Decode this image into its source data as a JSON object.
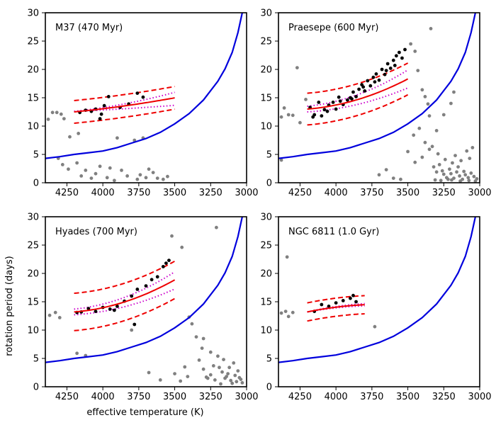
{
  "figure": {
    "xlabel": "effective temperature  (K)",
    "ylabel": "rotation period (days)"
  },
  "colors": {
    "field": "#808080",
    "member": "#000000",
    "fit": "#ee0000",
    "model": "#cc00cc",
    "slow_boundary": "#0000dd"
  },
  "chart_data": [
    {
      "type": "scatter",
      "title": "M37 (470 Myr)",
      "xlim": [
        4400,
        3000
      ],
      "ylim": [
        0,
        30
      ],
      "xticks": [
        4250,
        4000,
        3750,
        3500,
        3250,
        3000
      ],
      "yticks": [
        0,
        5,
        10,
        15,
        20,
        25,
        30
      ],
      "fit_range": [
        4200,
        3500
      ],
      "fit_coeffs": [
        12.5,
        2.5,
        1.5
      ],
      "fit_band": 2.0,
      "model_lower": [
        12.6,
        1.1,
        0.6
      ],
      "model_upper": [
        12.6,
        2.7,
        3.0
      ],
      "members": [
        [
          4160,
          12.4
        ],
        [
          4120,
          12.8
        ],
        [
          4080,
          12.6
        ],
        [
          4050,
          13.0
        ],
        [
          4020,
          11.3
        ],
        [
          3990,
          13.6
        ],
        [
          3960,
          15.2
        ],
        [
          3880,
          13.3
        ],
        [
          3820,
          13.9
        ],
        [
          3760,
          15.8
        ],
        [
          3720,
          15.1
        ],
        [
          4010,
          12.1
        ]
      ],
      "field": [
        [
          4380,
          11.2
        ],
        [
          4350,
          12.4
        ],
        [
          4320,
          12.4
        ],
        [
          4290,
          12.1
        ],
        [
          4270,
          11.3
        ],
        [
          4310,
          4.3
        ],
        [
          4280,
          3.2
        ],
        [
          4240,
          2.4
        ],
        [
          4180,
          3.5
        ],
        [
          4150,
          1.2
        ],
        [
          4120,
          2.2
        ],
        [
          4080,
          0.8
        ],
        [
          4050,
          1.6
        ],
        [
          4020,
          2.9
        ],
        [
          3970,
          0.9
        ],
        [
          3950,
          2.6
        ],
        [
          3920,
          0.4
        ],
        [
          3870,
          2.2
        ],
        [
          3830,
          1.2
        ],
        [
          3780,
          7.5
        ],
        [
          3760,
          0.6
        ],
        [
          3740,
          1.4
        ],
        [
          3720,
          7.9
        ],
        [
          3700,
          0.9
        ],
        [
          3680,
          2.4
        ],
        [
          3650,
          1.8
        ],
        [
          3620,
          0.8
        ],
        [
          3580,
          0.6
        ],
        [
          3550,
          1.1
        ],
        [
          4230,
          8.1
        ],
        [
          4170,
          8.7
        ],
        [
          3900,
          7.9
        ]
      ],
      "slow_boundary": [
        [
          4400,
          4.3
        ],
        [
          4300,
          4.6
        ],
        [
          4200,
          5.0
        ],
        [
          4100,
          5.3
        ],
        [
          4000,
          5.6
        ],
        [
          3900,
          6.2
        ],
        [
          3800,
          7.0
        ],
        [
          3700,
          7.8
        ],
        [
          3600,
          8.9
        ],
        [
          3500,
          10.4
        ],
        [
          3400,
          12.2
        ],
        [
          3300,
          14.6
        ],
        [
          3200,
          17.9
        ],
        [
          3150,
          20.1
        ],
        [
          3100,
          23.0
        ],
        [
          3060,
          26.5
        ],
        [
          3030,
          30.0
        ]
      ]
    },
    {
      "type": "scatter",
      "title": "Praesepe (600 Myr)",
      "xlim": [
        4400,
        3000
      ],
      "ylim": [
        0,
        30
      ],
      "xticks": [
        4250,
        4000,
        3750,
        3500,
        3250,
        3000
      ],
      "yticks": [
        0,
        5,
        10,
        15,
        20,
        25,
        30
      ],
      "fit_range": [
        4200,
        3500
      ],
      "fit_coeffs": [
        13.0,
        2.0,
        8.0
      ],
      "fit_band": 2.8,
      "model_lower": [
        12.5,
        1.5,
        6.5
      ],
      "model_upper": [
        13.5,
        2.5,
        9.5
      ],
      "members": [
        [
          4180,
          13.3
        ],
        [
          4150,
          12.0
        ],
        [
          4120,
          14.2
        ],
        [
          4100,
          11.8
        ],
        [
          4080,
          12.9
        ],
        [
          4050,
          13.7
        ],
        [
          4020,
          14.2
        ],
        [
          4000,
          13.0
        ],
        [
          3980,
          15.1
        ],
        [
          3950,
          13.8
        ],
        [
          3920,
          14.6
        ],
        [
          3900,
          15.0
        ],
        [
          3880,
          16.0
        ],
        [
          3860,
          15.2
        ],
        [
          3840,
          16.5
        ],
        [
          3820,
          17.3
        ],
        [
          3800,
          16.2
        ],
        [
          3780,
          18.0
        ],
        [
          3760,
          17.1
        ],
        [
          3740,
          18.6
        ],
        [
          3720,
          19.2
        ],
        [
          3700,
          18.1
        ],
        [
          3680,
          20.0
        ],
        [
          3660,
          19.1
        ],
        [
          3640,
          21.0
        ],
        [
          3620,
          20.2
        ],
        [
          3600,
          21.6
        ],
        [
          3580,
          22.4
        ],
        [
          3560,
          23.0
        ],
        [
          3540,
          22.0
        ],
        [
          3520,
          23.5
        ],
        [
          4160,
          11.6
        ],
        [
          4060,
          12.6
        ],
        [
          3970,
          14.4
        ],
        [
          3890,
          14.8
        ],
        [
          3810,
          16.9
        ],
        [
          3730,
          17.8
        ],
        [
          3650,
          19.8
        ],
        [
          3590,
          20.7
        ]
      ],
      "field": [
        [
          4380,
          11.6
        ],
        [
          4360,
          13.2
        ],
        [
          4330,
          12.0
        ],
        [
          4300,
          11.9
        ],
        [
          4270,
          20.3
        ],
        [
          4250,
          10.6
        ],
        [
          4210,
          14.7
        ],
        [
          4380,
          4.0
        ],
        [
          3480,
          24.5
        ],
        [
          3450,
          23.2
        ],
        [
          3430,
          19.8
        ],
        [
          3400,
          16.4
        ],
        [
          3380,
          15.2
        ],
        [
          3360,
          13.9
        ],
        [
          3350,
          11.8
        ],
        [
          3420,
          9.6
        ],
        [
          3460,
          8.4
        ],
        [
          3500,
          5.5
        ],
        [
          3450,
          3.6
        ],
        [
          3400,
          4.5
        ],
        [
          3380,
          7.1
        ],
        [
          3350,
          5.9
        ],
        [
          3320,
          2.8
        ],
        [
          3300,
          1.9
        ],
        [
          3280,
          3.2
        ],
        [
          3260,
          2.1
        ],
        [
          3250,
          1.5
        ],
        [
          3230,
          0.9
        ],
        [
          3210,
          2.4
        ],
        [
          3200,
          1.6
        ],
        [
          3180,
          0.8
        ],
        [
          3160,
          1.9
        ],
        [
          3150,
          2.8
        ],
        [
          3140,
          1.2
        ],
        [
          3120,
          0.6
        ],
        [
          3110,
          2.0
        ],
        [
          3100,
          1.4
        ],
        [
          3080,
          0.9
        ],
        [
          3060,
          1.7
        ],
        [
          3040,
          1.1
        ],
        [
          3020,
          0.7
        ],
        [
          3330,
          6.4
        ],
        [
          3290,
          5.1
        ],
        [
          3240,
          4.1
        ],
        [
          3190,
          3.5
        ],
        [
          3170,
          4.8
        ],
        [
          3130,
          3.9
        ],
        [
          3090,
          5.6
        ],
        [
          3070,
          4.3
        ],
        [
          3050,
          6.2
        ],
        [
          3310,
          0.5
        ],
        [
          3270,
          0.4
        ],
        [
          3220,
          0.6
        ],
        [
          3195,
          0.5
        ],
        [
          3135,
          0.3
        ],
        [
          3075,
          0.4
        ],
        [
          3030,
          0.3
        ],
        [
          3600,
          0.8
        ],
        [
          3650,
          2.3
        ],
        [
          3700,
          1.4
        ],
        [
          3550,
          0.6
        ],
        [
          3340,
          27.2
        ],
        [
          3200,
          14.0
        ],
        [
          3180,
          16.0
        ],
        [
          3250,
          12.0
        ],
        [
          3300,
          9.2
        ]
      ],
      "slow_boundary": [
        [
          4400,
          4.3
        ],
        [
          4300,
          4.6
        ],
        [
          4200,
          5.0
        ],
        [
          4100,
          5.3
        ],
        [
          4000,
          5.6
        ],
        [
          3900,
          6.2
        ],
        [
          3800,
          7.0
        ],
        [
          3700,
          7.8
        ],
        [
          3600,
          8.9
        ],
        [
          3500,
          10.4
        ],
        [
          3400,
          12.2
        ],
        [
          3300,
          14.6
        ],
        [
          3200,
          17.9
        ],
        [
          3150,
          20.1
        ],
        [
          3100,
          23.0
        ],
        [
          3060,
          26.5
        ],
        [
          3030,
          30.0
        ]
      ]
    },
    {
      "type": "scatter",
      "title": "Hyades (700 Myr)",
      "xlim": [
        4400,
        3000
      ],
      "ylim": [
        0,
        30
      ],
      "xticks": [
        4250,
        4000,
        3750,
        3500,
        3250,
        3000
      ],
      "yticks": [
        0,
        5,
        10,
        15,
        20,
        25,
        30
      ],
      "fit_range": [
        4200,
        3500
      ],
      "fit_coeffs": [
        13.2,
        2.0,
        8.7
      ],
      "fit_band": 3.3,
      "model_lower": [
        12.7,
        1.6,
        7.0
      ],
      "model_upper": [
        13.7,
        2.4,
        10.0
      ],
      "members": [
        [
          4180,
          13.1
        ],
        [
          4150,
          13.2
        ],
        [
          4100,
          13.8
        ],
        [
          4050,
          13.3
        ],
        [
          4000,
          14.0
        ],
        [
          3950,
          13.7
        ],
        [
          3900,
          14.2
        ],
        [
          3850,
          15.1
        ],
        [
          3800,
          16.0
        ],
        [
          3780,
          11.0
        ],
        [
          3760,
          17.2
        ],
        [
          3700,
          17.8
        ],
        [
          3660,
          18.9
        ],
        [
          3620,
          19.4
        ],
        [
          3580,
          21.2
        ],
        [
          3560,
          21.8
        ],
        [
          3540,
          22.3
        ],
        [
          3920,
          13.5
        ]
      ],
      "field": [
        [
          4370,
          12.6
        ],
        [
          4330,
          13.1
        ],
        [
          4300,
          12.2
        ],
        [
          4180,
          5.9
        ],
        [
          4120,
          5.5
        ],
        [
          3520,
          26.6
        ],
        [
          3450,
          24.6
        ],
        [
          3400,
          12.3
        ],
        [
          3380,
          11.1
        ],
        [
          3350,
          8.8
        ],
        [
          3330,
          4.7
        ],
        [
          3310,
          6.8
        ],
        [
          3300,
          3.1
        ],
        [
          3280,
          1.7
        ],
        [
          3250,
          2.1
        ],
        [
          3220,
          1.2
        ],
        [
          3210,
          28.1
        ],
        [
          3190,
          3.4
        ],
        [
          3170,
          2.6
        ],
        [
          3150,
          1.5
        ],
        [
          3130,
          2.3
        ],
        [
          3110,
          1.1
        ],
        [
          3090,
          4.2
        ],
        [
          3070,
          0.9
        ],
        [
          3050,
          1.6
        ],
        [
          3030,
          0.7
        ],
        [
          3410,
          1.8
        ],
        [
          3430,
          3.5
        ],
        [
          3460,
          1.0
        ],
        [
          3500,
          2.3
        ],
        [
          3600,
          1.2
        ],
        [
          3680,
          2.5
        ],
        [
          3300,
          8.5
        ],
        [
          3250,
          6.1
        ],
        [
          3200,
          5.4
        ],
        [
          3160,
          4.8
        ],
        [
          3120,
          3.4
        ],
        [
          3080,
          2.0
        ],
        [
          3270,
          1.5
        ],
        [
          3230,
          3.7
        ],
        [
          3180,
          0.5
        ],
        [
          3140,
          1.8
        ],
        [
          3100,
          0.6
        ],
        [
          3060,
          2.8
        ],
        [
          3040,
          1.3
        ],
        [
          3800,
          10.0
        ]
      ],
      "slow_boundary": [
        [
          4400,
          4.3
        ],
        [
          4300,
          4.6
        ],
        [
          4200,
          5.0
        ],
        [
          4100,
          5.3
        ],
        [
          4000,
          5.6
        ],
        [
          3900,
          6.2
        ],
        [
          3800,
          7.0
        ],
        [
          3700,
          7.8
        ],
        [
          3600,
          8.9
        ],
        [
          3500,
          10.4
        ],
        [
          3400,
          12.2
        ],
        [
          3300,
          14.6
        ],
        [
          3200,
          17.9
        ],
        [
          3150,
          20.1
        ],
        [
          3100,
          23.0
        ],
        [
          3060,
          26.5
        ],
        [
          3030,
          30.0
        ]
      ]
    },
    {
      "type": "scatter",
      "title": "NGC 6811 (1.0 Gyr)",
      "xlim": [
        4400,
        3000
      ],
      "ylim": [
        0,
        30
      ],
      "xticks": [
        4250,
        4000,
        3750,
        3500,
        3250,
        3000
      ],
      "yticks": [
        0,
        5,
        10,
        15,
        20,
        25,
        30
      ],
      "fit_range": [
        4200,
        3800
      ],
      "fit_coeffs": [
        13.2,
        5.2,
        -5.0
      ],
      "fit_band": 1.6,
      "model_lower": [
        13.2,
        4.4,
        -4.2
      ],
      "model_upper": [
        13.2,
        6.0,
        -5.8
      ],
      "members": [
        [
          4150,
          13.3
        ],
        [
          4100,
          14.5
        ],
        [
          4050,
          14.2
        ],
        [
          4000,
          14.8
        ],
        [
          3950,
          15.2
        ],
        [
          3900,
          15.6
        ],
        [
          3880,
          16.1
        ],
        [
          3860,
          15.0
        ]
      ],
      "field": [
        [
          4380,
          13.0
        ],
        [
          4350,
          13.3
        ],
        [
          4330,
          12.4
        ],
        [
          4300,
          13.1
        ],
        [
          4340,
          22.9
        ],
        [
          3730,
          10.6
        ]
      ],
      "slow_boundary": [
        [
          4400,
          4.3
        ],
        [
          4300,
          4.6
        ],
        [
          4200,
          5.0
        ],
        [
          4100,
          5.3
        ],
        [
          4000,
          5.6
        ],
        [
          3900,
          6.2
        ],
        [
          3800,
          7.0
        ],
        [
          3700,
          7.8
        ],
        [
          3600,
          8.9
        ],
        [
          3500,
          10.4
        ],
        [
          3400,
          12.2
        ],
        [
          3300,
          14.6
        ],
        [
          3200,
          17.9
        ],
        [
          3150,
          20.1
        ],
        [
          3100,
          23.0
        ],
        [
          3060,
          26.5
        ],
        [
          3030,
          30.0
        ]
      ]
    }
  ]
}
